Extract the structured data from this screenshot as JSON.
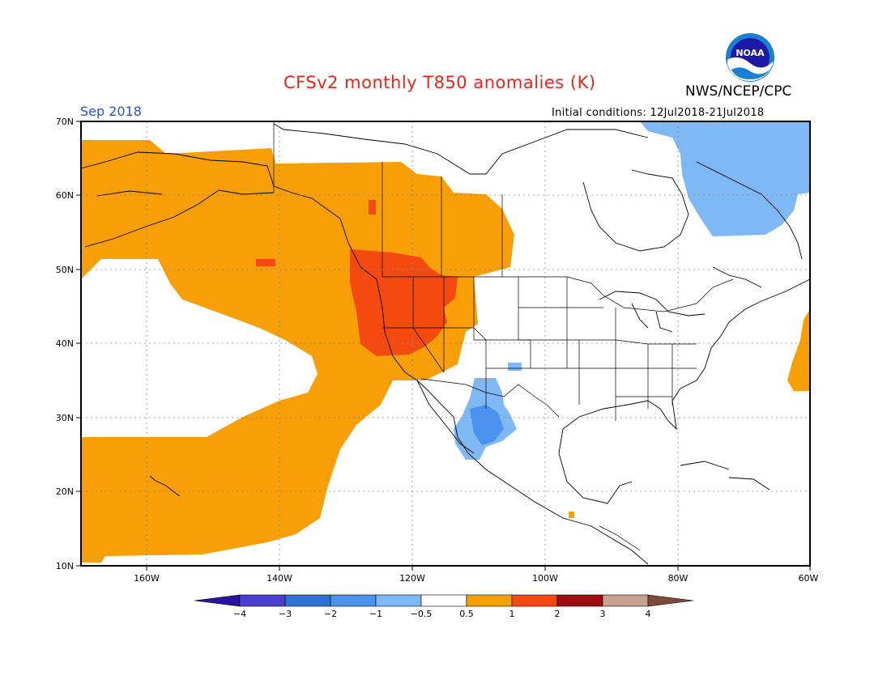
{
  "title": "CFSv2 monthly T850 anomalies (K)",
  "organization": "NWS/NCEP/CPC",
  "logo_text": "NOAA",
  "valid_month": "Sep 2018",
  "initial_conditions": "Initial conditions: 12Jul2018-21Jul2018",
  "lat_labels": [
    "70N",
    "60N",
    "50N",
    "40N",
    "30N",
    "20N",
    "10N"
  ],
  "lon_labels": [
    "160W",
    "140W",
    "120W",
    "100W",
    "80W",
    "60W"
  ],
  "colorbar": {
    "labels": [
      "−4",
      "−3",
      "−2",
      "−1",
      "−0.5",
      "0.5",
      "1",
      "2",
      "3",
      "4"
    ],
    "colors": [
      "#2a12a0",
      "#4a3fd2",
      "#2f6fd8",
      "#4a92ee",
      "#7eb8f5",
      "#ffffff",
      "#f99f06",
      "#f44a10",
      "#a00c10",
      "#c8a090",
      "#7a4a3a"
    ]
  },
  "regions": [
    {
      "name": "north-pacific-warm",
      "category": "0.5 to 1",
      "color": "#f99f06"
    },
    {
      "name": "northwest-us-warm",
      "category": "1 to 2",
      "color": "#f44a10"
    },
    {
      "name": "mexico-cool",
      "category": "-1 to -0.5",
      "color": "#7eb8f5"
    },
    {
      "name": "mexico-cool-core",
      "category": "-2 to -1",
      "color": "#4a92ee"
    },
    {
      "name": "hudson-labrador-cool",
      "category": "-1 to -0.5",
      "color": "#7eb8f5"
    },
    {
      "name": "atlantic-warm",
      "category": "0.5 to 1",
      "color": "#f99f06"
    }
  ]
}
